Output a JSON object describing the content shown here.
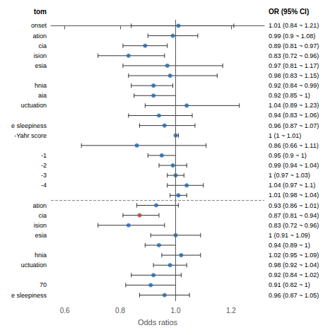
{
  "chart_data": {
    "type": "forest",
    "xlabel": "Odds ratios",
    "header_label": "tom",
    "header_value": "OR (95% CI)",
    "xlim": [
      0.55,
      1.32
    ],
    "xticks": [
      0.6,
      0.8,
      {
        "value": 1.0,
        "label": "1.0"
      },
      1.2
    ],
    "grid": false,
    "reference_line": 1.0,
    "separator_after": 17,
    "categories": [
      "onset",
      "ation",
      "cia",
      "ision",
      "esia",
      null,
      "hnia",
      "aia",
      "uctuation",
      null,
      "e sleepiness",
      "-Yahr score",
      null,
      "-1",
      "-2",
      "-3",
      "-4",
      null,
      "ation",
      "cia",
      "ision",
      "esia",
      null,
      "hnia",
      "uctuation",
      null,
      "70",
      "e sleepiness"
    ],
    "values": [
      1.01,
      0.99,
      0.89,
      0.83,
      0.97,
      0.98,
      0.92,
      0.92,
      1.04,
      0.94,
      0.96,
      1.0,
      0.86,
      0.95,
      0.99,
      1.0,
      1.04,
      1.01,
      0.93,
      0.87,
      0.83,
      1.0,
      0.94,
      1.02,
      0.98,
      0.92,
      0.91,
      0.96
    ],
    "lo": [
      0.84,
      0.9,
      0.81,
      0.72,
      0.81,
      0.83,
      0.84,
      0.85,
      0.89,
      0.83,
      0.87,
      1.0,
      0.66,
      0.9,
      0.94,
      0.97,
      0.97,
      0.98,
      0.86,
      0.81,
      0.72,
      0.91,
      0.89,
      0.95,
      0.92,
      0.84,
      0.82,
      0.87
    ],
    "hi": [
      1.21,
      1.08,
      0.97,
      0.96,
      1.17,
      1.15,
      0.99,
      1.0,
      1.23,
      1.06,
      1.07,
      1.01,
      1.11,
      1.0,
      1.04,
      1.03,
      1.1,
      1.04,
      1.01,
      0.94,
      0.96,
      1.09,
      1.0,
      1.09,
      1.04,
      1.02,
      1.0,
      1.05
    ],
    "value_labels": [
      "1.01 (0.84 ~ 1.21)",
      "0.99 (0.9 ~ 1.08)",
      "0.89 (0.81 ~ 0.97)",
      "0.83 (0.72 ~ 0.96)",
      "0.97 (0.81 ~ 1.17)",
      "0.98 (0.83 ~ 1.15)",
      "0.92 (0.84 ~ 0.99)",
      "0.92 (0.85 ~ 1)",
      "1.04 (0.89 ~ 1.23)",
      "0.94 (0.83 ~ 1.06)",
      "0.96 (0.87 ~ 1.07)",
      "1 (1 ~ 1.01)",
      "0.86 (0.66 ~ 1.11)",
      "0.95 (0.9 ~ 1)",
      "0.99 (0.94 ~ 1.04)",
      "1 (0.97 ~ 1.03)",
      "1.04 (0.97 ~ 1.1)",
      "1.01 (0.98 ~ 1.04)",
      "0.93 (0.86 ~ 1.01)",
      "0.87 (0.81 ~ 0.94)",
      "0.83 (0.72 ~ 0.96)",
      "1 (0.91 ~ 1.09)",
      "0.94 (0.89 ~ 1)",
      "1.02 (0.95 ~ 1.09)",
      "0.98 (0.92 ~ 1.04)",
      "0.92 (0.84 ~ 1.02)",
      "0.91 (0.82 ~ 1)",
      "0.96 (0.87 ~ 1.05)"
    ],
    "colors": [
      "#2166ac",
      "#2166ac",
      "#2166ac",
      "#2166ac",
      "#2166ac",
      "#2166ac",
      "#2166ac",
      "#2166ac",
      "#2166ac",
      "#2166ac",
      "#2166ac",
      "#2166ac",
      "#2166ac",
      "#2166ac",
      "#2166ac",
      "#2166ac",
      "#2166ac",
      "#2166ac",
      "#2166ac",
      "#c0392b",
      "#2166ac",
      "#2166ac",
      "#2166ac",
      "#2166ac",
      "#2166ac",
      "#2166ac",
      "#2166ac",
      "#2166ac"
    ]
  }
}
